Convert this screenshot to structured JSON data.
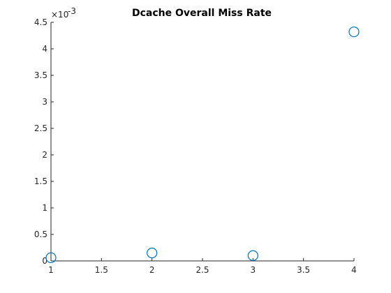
{
  "chart_data": {
    "type": "scatter",
    "title": "Dcache Overall Miss Rate",
    "xlabel": "",
    "ylabel": "",
    "x": [
      1,
      2,
      3,
      4
    ],
    "y": [
      6e-05,
      0.00015,
      0.0001,
      0.00432
    ],
    "xlim": [
      1,
      4
    ],
    "ylim": [
      0,
      0.0045
    ],
    "x_ticks": [
      1,
      1.5,
      2,
      2.5,
      3,
      3.5,
      4
    ],
    "x_tick_labels": [
      "1",
      "1.5",
      "2",
      "2.5",
      "3",
      "3.5",
      "4"
    ],
    "y_ticks": [
      0,
      0.0005,
      0.001,
      0.0015,
      0.002,
      0.0025,
      0.003,
      0.0035,
      0.004,
      0.0045
    ],
    "y_tick_labels": [
      "0",
      "0.5",
      "1",
      "1.5",
      "2",
      "2.5",
      "3",
      "3.5",
      "4",
      "4.5"
    ],
    "y_exponent": {
      "base": "×10",
      "power": "-3"
    },
    "marker": "circle-open",
    "marker_color": "#0072BD",
    "axis_color": "#262626",
    "grid": false,
    "legend": "none"
  }
}
